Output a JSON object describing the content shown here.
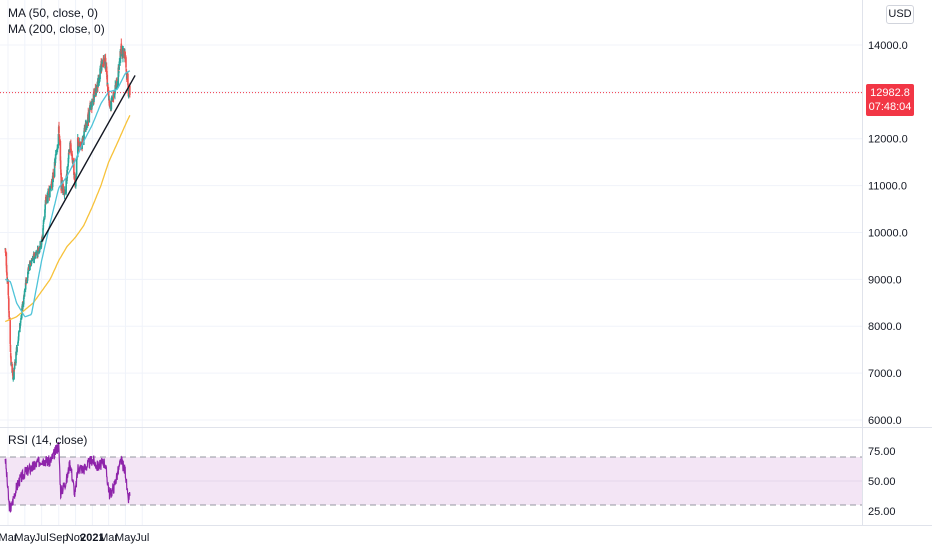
{
  "legend": {
    "ma50": "MA (50, close, 0)",
    "ma200": "MA (200, close, 0)",
    "rsi": "RSI (14, close)"
  },
  "currency": "USD",
  "last_price": "12982.8",
  "countdown": "07:48:04",
  "colors": {
    "up": "#26a69a",
    "down": "#ef5350",
    "ma50": "#4ec3d8",
    "ma200": "#f7c23a",
    "rsi_line": "#8e24aa",
    "rsi_band": "#f3e5f5",
    "trendline": "#131722",
    "price_line": "#f23645"
  },
  "chart_data": [
    {
      "type": "candlestick",
      "x_ticks": [
        "Mar",
        "May",
        "Jul",
        "Sep",
        "Nov",
        "2021",
        "Mar",
        "May",
        "Jul"
      ],
      "y_ticks": [
        "14000.0",
        "13000.0",
        "12000.0",
        "11000.0",
        "10000.0",
        "9000.0",
        "8000.0",
        "7000.0",
        "6000.0"
      ],
      "ylim": [
        5900,
        14800
      ],
      "price_anchors": [
        [
          "2020-02-20",
          9650
        ],
        [
          "2020-03-01",
          8800
        ],
        [
          "2020-03-12",
          7200
        ],
        [
          "2020-03-20",
          6900
        ],
        [
          "2020-04-01",
          7500
        ],
        [
          "2020-04-20",
          8300
        ],
        [
          "2020-05-01",
          8800
        ],
        [
          "2020-05-15",
          9250
        ],
        [
          "2020-06-01",
          9450
        ],
        [
          "2020-06-20",
          9650
        ],
        [
          "2020-07-01",
          9800
        ],
        [
          "2020-07-15",
          10650
        ],
        [
          "2020-08-01",
          10900
        ],
        [
          "2020-08-15",
          11300
        ],
        [
          "2020-09-02",
          12200
        ],
        [
          "2020-09-10",
          11000
        ],
        [
          "2020-09-25",
          10900
        ],
        [
          "2020-10-12",
          11900
        ],
        [
          "2020-10-22",
          11500
        ],
        [
          "2020-11-01",
          11000
        ],
        [
          "2020-11-09",
          11900
        ],
        [
          "2020-11-20",
          11800
        ],
        [
          "2020-12-10",
          12300
        ],
        [
          "2021-01-01",
          12800
        ],
        [
          "2021-01-20",
          13200
        ],
        [
          "2021-02-15",
          13800
        ],
        [
          "2021-03-05",
          12600
        ],
        [
          "2021-03-20",
          13000
        ],
        [
          "2021-04-01",
          13200
        ],
        [
          "2021-04-15",
          13900
        ],
        [
          "2021-04-29",
          13850
        ],
        [
          "2021-05-05",
          13400
        ],
        [
          "2021-05-12",
          13000
        ],
        [
          "2021-05-17",
          12983
        ]
      ],
      "ma50_anchors": [
        [
          "2020-02-20",
          9000
        ],
        [
          "2020-03-10",
          8950
        ],
        [
          "2020-04-01",
          8500
        ],
        [
          "2020-05-01",
          8200
        ],
        [
          "2020-05-25",
          8250
        ],
        [
          "2020-07-01",
          9400
        ],
        [
          "2020-08-01",
          10200
        ],
        [
          "2020-09-01",
          10950
        ],
        [
          "2020-10-01",
          11200
        ],
        [
          "2020-11-01",
          11550
        ],
        [
          "2020-12-01",
          11950
        ],
        [
          "2021-01-01",
          12300
        ],
        [
          "2021-02-01",
          12750
        ],
        [
          "2021-03-01",
          13000
        ],
        [
          "2021-04-01",
          13050
        ],
        [
          "2021-05-01",
          13400
        ],
        [
          "2021-05-17",
          13450
        ]
      ],
      "ma200_anchors": [
        [
          "2020-02-20",
          8100
        ],
        [
          "2020-04-01",
          8200
        ],
        [
          "2020-06-01",
          8500
        ],
        [
          "2020-08-01",
          9000
        ],
        [
          "2020-09-01",
          9400
        ],
        [
          "2020-10-01",
          9700
        ],
        [
          "2020-11-01",
          9900
        ],
        [
          "2020-12-01",
          10150
        ],
        [
          "2021-01-01",
          10550
        ],
        [
          "2021-02-01",
          11000
        ],
        [
          "2021-03-01",
          11500
        ],
        [
          "2021-04-01",
          11900
        ],
        [
          "2021-05-01",
          12300
        ],
        [
          "2021-05-17",
          12500
        ]
      ],
      "trendline": [
        [
          "2020-07-01",
          9800
        ],
        [
          "2021-06-05",
          13350
        ]
      ],
      "last_price": 12982.8
    },
    {
      "type": "line",
      "title": "RSI (14, close)",
      "y_ticks": [
        "75.00",
        "50.00",
        "25.00"
      ],
      "ylim": [
        20,
        80
      ],
      "bands": [
        30,
        70
      ],
      "rsi_anchors": [
        [
          "2020-02-20",
          70
        ],
        [
          "2020-03-05",
          30
        ],
        [
          "2020-03-12",
          27
        ],
        [
          "2020-03-25",
          40
        ],
        [
          "2020-04-10",
          50
        ],
        [
          "2020-05-01",
          57
        ],
        [
          "2020-06-01",
          62
        ],
        [
          "2020-07-01",
          68
        ],
        [
          "2020-08-01",
          66
        ],
        [
          "2020-09-01",
          80
        ],
        [
          "2020-09-08",
          40
        ],
        [
          "2020-10-01",
          52
        ],
        [
          "2020-10-12",
          66
        ],
        [
          "2020-10-30",
          38
        ],
        [
          "2020-11-10",
          61
        ],
        [
          "2020-12-01",
          60
        ],
        [
          "2021-01-01",
          68
        ],
        [
          "2021-01-20",
          62
        ],
        [
          "2021-02-15",
          66
        ],
        [
          "2021-03-05",
          38
        ],
        [
          "2021-03-20",
          45
        ],
        [
          "2021-04-15",
          67
        ],
        [
          "2021-05-01",
          58
        ],
        [
          "2021-05-10",
          34
        ],
        [
          "2021-05-17",
          38
        ]
      ]
    }
  ]
}
